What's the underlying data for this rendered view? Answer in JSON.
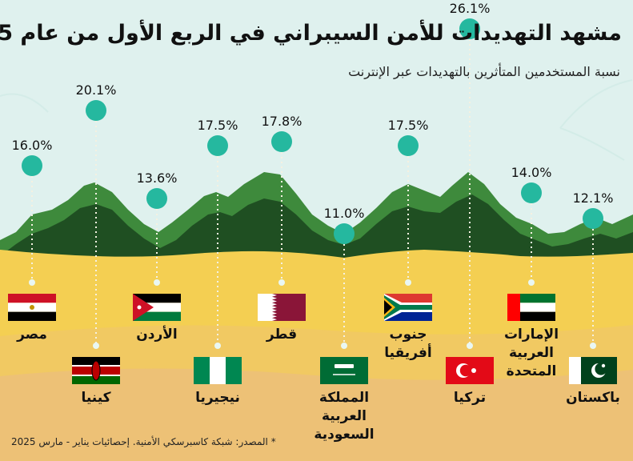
{
  "title": "مشهد التهديدات للأمن السيبراني في الربع الأول من عام 2025",
  "subtitle": "نسبة المستخدمين المتأثرين بالتهديدات عبر الإنترنت",
  "source": "* المصدر: شبكة كاسبرسكي الأمنية. إحصائيات يناير - مارس 2025",
  "colors": {
    "background": "#dff1ee",
    "sand": "#f4cf52",
    "dot": "#25b89f",
    "mountain_light": "#3e8a3c",
    "mountain_dark": "#1f4f22"
  },
  "chart_data": {
    "type": "scatter",
    "title": "مشهد التهديدات للأمن السيبراني في الربع الأول من عام 2025",
    "unit": "%",
    "categories": [
      "مصر",
      "كينيا",
      "الأردن",
      "نيجيريا",
      "قطر",
      "المملكة العربية السعودية",
      "جنوب أفريقيا",
      "تركيا",
      "الإمارات العربية المتحدة",
      "باكستان"
    ],
    "values": [
      16.0,
      20.1,
      13.6,
      17.5,
      17.8,
      11.0,
      17.5,
      26.1,
      14.0,
      12.1
    ],
    "labels": [
      "16.0%",
      "20.1%",
      "13.6%",
      "17.5%",
      "17.8%",
      "11.0%",
      "17.5%",
      "26.1%",
      "14.0%",
      "12.1%"
    ],
    "countries": [
      {
        "name_lines": [
          "مصر"
        ],
        "flag": "egypt-flag"
      },
      {
        "name_lines": [
          "كينيا"
        ],
        "flag": "kenya-flag"
      },
      {
        "name_lines": [
          "الأردن"
        ],
        "flag": "jordan-flag"
      },
      {
        "name_lines": [
          "نيجيريا"
        ],
        "flag": "nigeria-flag"
      },
      {
        "name_lines": [
          "قطر"
        ],
        "flag": "qatar-flag"
      },
      {
        "name_lines": [
          "المملكة",
          "العربية",
          "السعودية"
        ],
        "flag": "saudi-arabia-flag"
      },
      {
        "name_lines": [
          "جنوب",
          "أفريقيا"
        ],
        "flag": "south-africa-flag"
      },
      {
        "name_lines": [
          "تركيا"
        ],
        "flag": "turkey-flag"
      },
      {
        "name_lines": [
          "الإمارات",
          "العربية",
          "المتحدة"
        ],
        "flag": "uae-flag"
      },
      {
        "name_lines": [
          "باكستان"
        ],
        "flag": "pakistan-flag"
      }
    ]
  }
}
